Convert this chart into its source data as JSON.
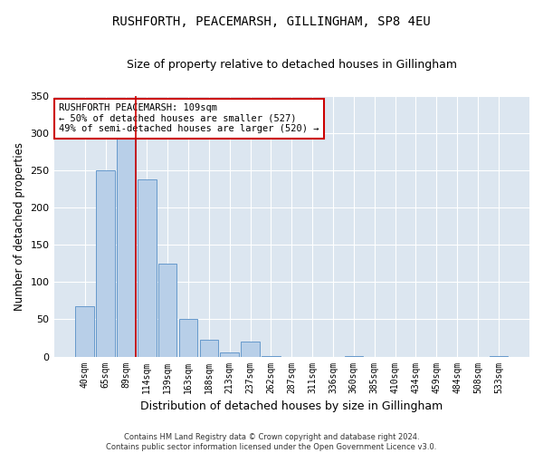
{
  "title": "RUSHFORTH, PEACEMARSH, GILLINGHAM, SP8 4EU",
  "subtitle": "Size of property relative to detached houses in Gillingham",
  "xlabel": "Distribution of detached houses by size in Gillingham",
  "ylabel": "Number of detached properties",
  "bar_color": "#b8cfe8",
  "bar_edge_color": "#6699cc",
  "background_color": "#dce6f0",
  "grid_color": "#ffffff",
  "categories": [
    "40sqm",
    "65sqm",
    "89sqm",
    "114sqm",
    "139sqm",
    "163sqm",
    "188sqm",
    "213sqm",
    "237sqm",
    "262sqm",
    "287sqm",
    "311sqm",
    "336sqm",
    "360sqm",
    "385sqm",
    "410sqm",
    "434sqm",
    "459sqm",
    "484sqm",
    "508sqm",
    "533sqm"
  ],
  "values": [
    68,
    250,
    293,
    238,
    125,
    50,
    22,
    5,
    20,
    1,
    0,
    0,
    0,
    1,
    0,
    0,
    0,
    0,
    0,
    0,
    1
  ],
  "property_line_x": 2.45,
  "annotation_text": "RUSHFORTH PEACEMARSH: 109sqm\n← 50% of detached houses are smaller (527)\n49% of semi-detached houses are larger (520) →",
  "annotation_box_color": "#ffffff",
  "annotation_edge_color": "#cc0000",
  "property_line_color": "#cc0000",
  "ylim": [
    0,
    350
  ],
  "yticks": [
    0,
    50,
    100,
    150,
    200,
    250,
    300,
    350
  ],
  "footer_text": "Contains HM Land Registry data © Crown copyright and database right 2024.\nContains public sector information licensed under the Open Government Licence v3.0.",
  "figsize": [
    6.0,
    5.0
  ],
  "dpi": 100
}
